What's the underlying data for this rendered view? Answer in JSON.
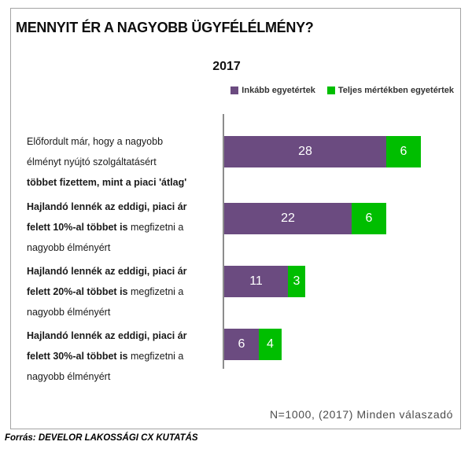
{
  "page": {
    "title": "MENNYIT ÉR A NAGYOBB ÜGYFÉLÉLMÉNY?",
    "footer_note": "N=1000, (2017) Minden válaszadó",
    "source": "Forrás: DEVELOR LAKOSSÁGI CX KUTATÁS"
  },
  "colors": {
    "series_purple": "#6b4b80",
    "series_green": "#00be00",
    "axis": "#8c8c8c",
    "frame_border": "#a3a3a3",
    "bar_value_text": "#ffffff"
  },
  "chart_data": {
    "type": "bar",
    "orientation": "horizontal",
    "stacked": true,
    "title": "2017",
    "grid": false,
    "legend_position": "top-right",
    "xlim": [
      0,
      41
    ],
    "value_labels": "inside, white",
    "categories": [
      {
        "text": "Előfordult már, hogy a nagyobb élményt nyújtó szolgáltatásért többet fizettem, mint a piaci 'átlag'",
        "lines": [
          [
            {
              "text": "Előfordult már, hogy a nagyobb",
              "bold": false
            }
          ],
          [
            {
              "text": "élményt nyújtó szolgáltatásért",
              "bold": false
            }
          ],
          [
            {
              "text": "többet fizettem, mint a piaci 'átlag'",
              "bold": true
            }
          ]
        ]
      },
      {
        "text": "Hajlandó lennék az eddigi, piaci ár felett 10%-al többet is megfizetni a nagyobb élményért",
        "lines": [
          [
            {
              "text": "Hajlandó lennék az eddigi, piaci ár",
              "bold": true
            }
          ],
          [
            {
              "text": "felett 10%-al többet is ",
              "bold": true
            },
            {
              "text": "megfizetni a",
              "bold": false
            }
          ],
          [
            {
              "text": "nagyobb élményért",
              "bold": false
            }
          ]
        ]
      },
      {
        "text": "Hajlandó lennék az eddigi, piaci ár felett 20%-al többet is megfizetni a nagyobb élményért",
        "lines": [
          [
            {
              "text": "Hajlandó lennék az eddigi, piaci ár",
              "bold": true
            }
          ],
          [
            {
              "text": "felett 20%-al többet is ",
              "bold": true
            },
            {
              "text": "megfizetni a",
              "bold": false
            }
          ],
          [
            {
              "text": "nagyobb élményért",
              "bold": false
            }
          ]
        ]
      },
      {
        "text": "Hajlandó lennék az eddigi, piaci ár felett 30%-al többet is megfizetni a nagyobb élményért",
        "lines": [
          [
            {
              "text": "Hajlandó lennék az eddigi, piaci ár",
              "bold": true
            }
          ],
          [
            {
              "text": "felett 30%-al többet is ",
              "bold": true
            },
            {
              "text": "megfizetni a",
              "bold": false
            }
          ],
          [
            {
              "text": "nagyobb élményért",
              "bold": false
            }
          ]
        ]
      }
    ],
    "series": [
      {
        "name": "Inkább egyetértek",
        "color": "#6b4b80",
        "values": [
          28,
          22,
          11,
          6
        ]
      },
      {
        "name": "Teljes mértékben egyetértek",
        "color": "#00be00",
        "values": [
          6,
          6,
          3,
          4
        ]
      }
    ]
  }
}
